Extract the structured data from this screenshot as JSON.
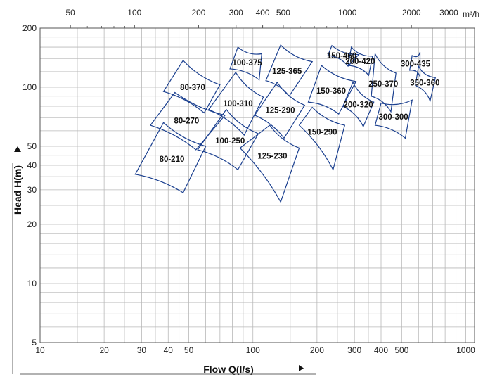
{
  "chart_data": {
    "type": "scatter",
    "xlabel": "Flow Q(l/s)",
    "ylabel": "Head H(m)",
    "x_scale": "log",
    "y_scale": "log",
    "xlim": [
      10,
      1100
    ],
    "ylim": [
      5,
      200
    ],
    "grid": true,
    "x_ticks": [
      10,
      20,
      30,
      40,
      50,
      100,
      200,
      300,
      400,
      500,
      1000
    ],
    "y_ticks": [
      5,
      10,
      20,
      30,
      40,
      50,
      100,
      200
    ],
    "top_axis_unit": "m³/h",
    "top_ticks": [
      50,
      100,
      200,
      300,
      400,
      500,
      1000,
      2000,
      3000
    ],
    "series": [
      {
        "name": "80-210",
        "corners": [
          [
            28,
            36
          ],
          [
            47,
            29
          ],
          [
            60,
            50
          ],
          [
            38,
            66
          ]
        ]
      },
      {
        "name": "80-270",
        "corners": [
          [
            33,
            64
          ],
          [
            54,
            48
          ],
          [
            74,
            72
          ],
          [
            43,
            94
          ]
        ]
      },
      {
        "name": "80-370",
        "corners": [
          [
            38,
            95
          ],
          [
            59,
            74
          ],
          [
            70,
            103
          ],
          [
            47,
            137
          ]
        ]
      },
      {
        "name": "100-250",
        "corners": [
          [
            55,
            48
          ],
          [
            85,
            38
          ],
          [
            106,
            58
          ],
          [
            75,
            77
          ]
        ]
      },
      {
        "name": "100-310",
        "corners": [
          [
            62,
            77
          ],
          [
            91,
            57
          ],
          [
            112,
            89
          ],
          [
            83,
            119
          ]
        ]
      },
      {
        "name": "100-375",
        "corners": [
          [
            78,
            124
          ],
          [
            107,
            109
          ],
          [
            110,
            148
          ],
          [
            85,
            160
          ]
        ]
      },
      {
        "name": "125-230",
        "corners": [
          [
            87,
            49
          ],
          [
            135,
            26
          ],
          [
            165,
            49
          ],
          [
            120,
            64
          ]
        ]
      },
      {
        "name": "125-290",
        "corners": [
          [
            102,
            72
          ],
          [
            140,
            55
          ],
          [
            175,
            81
          ],
          [
            130,
            106
          ]
        ]
      },
      {
        "name": "125-365",
        "corners": [
          [
            115,
            108
          ],
          [
            148,
            90
          ],
          [
            190,
            135
          ],
          [
            135,
            164
          ]
        ]
      },
      {
        "name": "150-290",
        "corners": [
          [
            165,
            64
          ],
          [
            238,
            38
          ],
          [
            270,
            64
          ],
          [
            190,
            79
          ]
        ]
      },
      {
        "name": "150-360",
        "corners": [
          [
            182,
            84
          ],
          [
            253,
            73
          ],
          [
            305,
            107
          ],
          [
            210,
            129
          ]
        ]
      },
      {
        "name": "150-460",
        "corners": [
          [
            225,
            145
          ],
          [
            280,
            128
          ],
          [
            315,
            147
          ],
          [
            235,
            163
          ]
        ]
      },
      {
        "name": "200-320",
        "corners": [
          [
            265,
            80
          ],
          [
            330,
            63
          ],
          [
            370,
            84
          ],
          [
            295,
            106
          ]
        ]
      },
      {
        "name": "200-420",
        "corners": [
          [
            280,
            129
          ],
          [
            350,
            115
          ],
          [
            365,
            144
          ],
          [
            290,
            160
          ]
        ]
      },
      {
        "name": "250-370",
        "corners": [
          [
            360,
            90
          ],
          [
            445,
            75
          ],
          [
            470,
            118
          ],
          [
            375,
            148
          ]
        ]
      },
      {
        "name": "300-300",
        "corners": [
          [
            375,
            64
          ],
          [
            520,
            55
          ],
          [
            560,
            86
          ],
          [
            400,
            83
          ]
        ]
      },
      {
        "name": "300-435",
        "corners": [
          [
            545,
            122
          ],
          [
            610,
            113
          ],
          [
            610,
            151
          ],
          [
            560,
            145
          ]
        ]
      },
      {
        "name": "350-360",
        "corners": [
          [
            580,
            102
          ],
          [
            680,
            85
          ],
          [
            720,
            112
          ],
          [
            600,
            128
          ]
        ]
      }
    ]
  }
}
